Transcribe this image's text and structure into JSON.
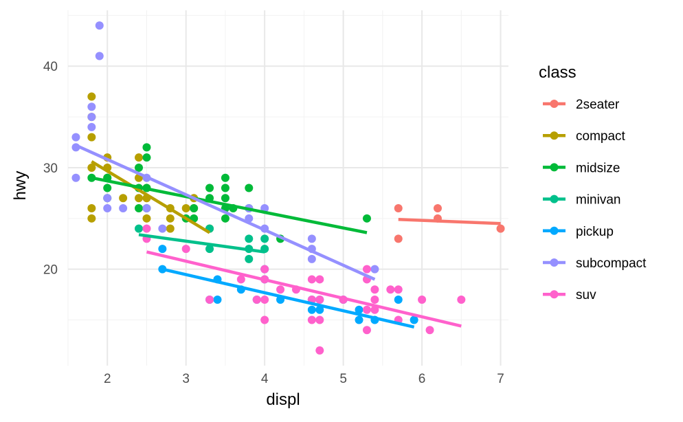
{
  "chart_data": {
    "type": "scatter",
    "xlabel": "displ",
    "ylabel": "hwy",
    "xlim": [
      1.5,
      7.1
    ],
    "ylim": [
      10.5,
      45.5
    ],
    "x_ticks": [
      2,
      3,
      4,
      5,
      6,
      7
    ],
    "y_ticks": [
      20,
      30,
      40
    ],
    "grid": true,
    "legend": {
      "title": "class",
      "placement": "right"
    },
    "series": [
      {
        "name": "2seater",
        "color": "#F8766D",
        "points": [
          [
            5.7,
            26
          ],
          [
            5.7,
            23
          ],
          [
            6.2,
            26
          ],
          [
            6.2,
            25
          ],
          [
            7.0,
            24
          ]
        ],
        "trend": [
          [
            5.7,
            24.9
          ],
          [
            7.0,
            24.5
          ]
        ]
      },
      {
        "name": "compact",
        "color": "#B79F00",
        "points": [
          [
            1.8,
            37
          ],
          [
            1.8,
            35
          ],
          [
            1.8,
            33
          ],
          [
            1.8,
            30
          ],
          [
            1.8,
            26
          ],
          [
            1.8,
            25
          ],
          [
            2.0,
            31
          ],
          [
            2.0,
            30
          ],
          [
            2.0,
            29
          ],
          [
            2.2,
            27
          ],
          [
            2.4,
            31
          ],
          [
            2.4,
            29
          ],
          [
            2.4,
            27
          ],
          [
            2.5,
            28
          ],
          [
            2.5,
            27
          ],
          [
            2.5,
            25
          ],
          [
            2.8,
            26
          ],
          [
            2.8,
            25
          ],
          [
            2.8,
            24
          ],
          [
            3.0,
            26
          ],
          [
            3.1,
            27
          ],
          [
            3.1,
            26
          ],
          [
            3.3,
            24
          ]
        ],
        "trend": [
          [
            1.8,
            30.6
          ],
          [
            3.3,
            23.6
          ]
        ]
      },
      {
        "name": "midsize",
        "color": "#00BA38",
        "points": [
          [
            1.8,
            29
          ],
          [
            2.0,
            29
          ],
          [
            2.0,
            28
          ],
          [
            2.0,
            27
          ],
          [
            2.4,
            30
          ],
          [
            2.4,
            28
          ],
          [
            2.4,
            26
          ],
          [
            2.5,
            32
          ],
          [
            2.5,
            31
          ],
          [
            2.5,
            28
          ],
          [
            2.5,
            26
          ],
          [
            3.0,
            25
          ],
          [
            3.1,
            26
          ],
          [
            3.1,
            25
          ],
          [
            3.3,
            28
          ],
          [
            3.3,
            27
          ],
          [
            3.5,
            29
          ],
          [
            3.5,
            28
          ],
          [
            3.5,
            27
          ],
          [
            3.5,
            26
          ],
          [
            3.5,
            25
          ],
          [
            3.6,
            26
          ],
          [
            3.8,
            28
          ],
          [
            3.8,
            26
          ],
          [
            4.2,
            23
          ],
          [
            5.3,
            25
          ]
        ],
        "trend": [
          [
            1.8,
            29.0
          ],
          [
            5.3,
            23.6
          ]
        ]
      },
      {
        "name": "minivan",
        "color": "#00C08B",
        "points": [
          [
            2.4,
            24
          ],
          [
            3.3,
            24
          ],
          [
            3.3,
            22
          ],
          [
            3.8,
            23
          ],
          [
            3.8,
            22
          ],
          [
            3.8,
            21
          ],
          [
            4.0,
            23
          ],
          [
            4.0,
            22
          ]
        ],
        "trend": [
          [
            2.4,
            23.4
          ],
          [
            4.0,
            21.7
          ]
        ]
      },
      {
        "name": "pickup",
        "color": "#00A9FF",
        "points": [
          [
            2.7,
            22
          ],
          [
            2.7,
            20
          ],
          [
            3.3,
            17
          ],
          [
            3.4,
            19
          ],
          [
            3.4,
            17
          ],
          [
            3.7,
            18
          ],
          [
            3.9,
            17
          ],
          [
            4.0,
            20
          ],
          [
            4.0,
            19
          ],
          [
            4.2,
            17
          ],
          [
            4.6,
            17
          ],
          [
            4.6,
            16
          ],
          [
            4.7,
            17
          ],
          [
            4.7,
            16
          ],
          [
            5.0,
            17
          ],
          [
            5.2,
            16
          ],
          [
            5.2,
            15
          ],
          [
            5.4,
            15
          ],
          [
            5.7,
            17
          ],
          [
            5.9,
            15
          ]
        ],
        "trend": [
          [
            2.7,
            20.0
          ],
          [
            5.9,
            14.3
          ]
        ]
      },
      {
        "name": "subcompact",
        "color": "#9590FF",
        "points": [
          [
            1.6,
            33
          ],
          [
            1.6,
            32
          ],
          [
            1.6,
            29
          ],
          [
            1.8,
            36
          ],
          [
            1.8,
            35
          ],
          [
            1.8,
            34
          ],
          [
            1.9,
            44
          ],
          [
            1.9,
            41
          ],
          [
            2.0,
            27
          ],
          [
            2.0,
            26
          ],
          [
            2.2,
            26
          ],
          [
            2.5,
            26
          ],
          [
            2.5,
            29
          ],
          [
            2.7,
            24
          ],
          [
            3.8,
            26
          ],
          [
            3.8,
            25
          ],
          [
            4.0,
            26
          ],
          [
            4.0,
            24
          ],
          [
            4.6,
            23
          ],
          [
            4.6,
            22
          ],
          [
            4.6,
            21
          ],
          [
            5.4,
            20
          ]
        ],
        "trend": [
          [
            1.6,
            32.2
          ],
          [
            5.4,
            19.0
          ]
        ]
      },
      {
        "name": "suv",
        "color": "#FF61CC",
        "points": [
          [
            2.5,
            24
          ],
          [
            2.5,
            23
          ],
          [
            3.0,
            22
          ],
          [
            3.3,
            17
          ],
          [
            3.7,
            19
          ],
          [
            3.9,
            17
          ],
          [
            4.0,
            20
          ],
          [
            4.0,
            19
          ],
          [
            4.0,
            17
          ],
          [
            4.0,
            15
          ],
          [
            4.2,
            18
          ],
          [
            4.4,
            18
          ],
          [
            4.6,
            19
          ],
          [
            4.6,
            17
          ],
          [
            4.6,
            15
          ],
          [
            4.7,
            19
          ],
          [
            4.7,
            17
          ],
          [
            4.7,
            15
          ],
          [
            4.7,
            12
          ],
          [
            5.0,
            17
          ],
          [
            5.3,
            20
          ],
          [
            5.3,
            19
          ],
          [
            5.3,
            16
          ],
          [
            5.3,
            14
          ],
          [
            5.4,
            18
          ],
          [
            5.4,
            17
          ],
          [
            5.4,
            16
          ],
          [
            5.6,
            18
          ],
          [
            5.7,
            18
          ],
          [
            5.7,
            15
          ],
          [
            6.0,
            17
          ],
          [
            6.1,
            14
          ],
          [
            6.5,
            17
          ]
        ],
        "trend": [
          [
            2.5,
            21.7
          ],
          [
            6.5,
            14.4
          ]
        ]
      }
    ]
  }
}
